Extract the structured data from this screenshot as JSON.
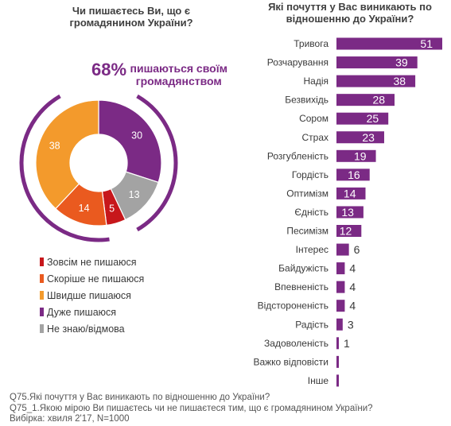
{
  "left_title": "Чи пишаєтесь Ви, що є громадянином України?",
  "right_title": "Які почуття у Вас виникають по відношенню до України?",
  "headline": {
    "value": "68%",
    "text_line1": "пишаються своїм",
    "text_line2": "громадянством"
  },
  "colors": {
    "purple": "#7b2a85",
    "orange": "#f39a2c",
    "red_orange": "#ea5a1f",
    "dark_red": "#c7171b",
    "gray": "#a3a3a3"
  },
  "chart_data": [
    {
      "type": "pie",
      "title": "Чи пишаєтесь Ви, що є громадянином України?",
      "slices": [
        {
          "label": "Зовсім не пишаюся",
          "value": 5,
          "color": "#c7171b"
        },
        {
          "label": "Скоріше не пишаюся",
          "value": 14,
          "color": "#ea5a1f"
        },
        {
          "label": "Швидше пишаюся",
          "value": 38,
          "color": "#f39a2c"
        },
        {
          "label": "Дуже пишаюся",
          "value": 30,
          "color": "#7b2a85"
        },
        {
          "label": "Не знаю/відмова",
          "value": 13,
          "color": "#a3a3a3"
        }
      ]
    },
    {
      "type": "bar",
      "orientation": "horizontal",
      "title": "Які почуття у Вас виникають по відношенню до України?",
      "categories": [
        "Тривога",
        "Розчарування",
        "Надія",
        "Безвихідь",
        "Сором",
        "Страх",
        "Розгубленість",
        "Гордість",
        "Оптимізм",
        "Єдність",
        "Песимізм",
        "Інтерес",
        "Байдужість",
        "Впевненість",
        "Відстороненість",
        "Радість",
        "Задоволеність",
        "Важко відповісти",
        "Інше"
      ],
      "values": [
        51,
        39,
        38,
        28,
        25,
        23,
        19,
        16,
        14,
        13,
        12,
        6,
        4,
        4,
        4,
        3,
        1,
        null,
        null
      ],
      "color": "#7b2a85"
    }
  ],
  "notes": [
    "Q75.Які почуття у Вас виникають по відношенню до України?",
    "Q75_1.Якою мірою Ви пишаєтесь чи не пишаєтеся тим, що є громадянином України?",
    "Вибірка: хвиля 2'17, N=1000"
  ]
}
